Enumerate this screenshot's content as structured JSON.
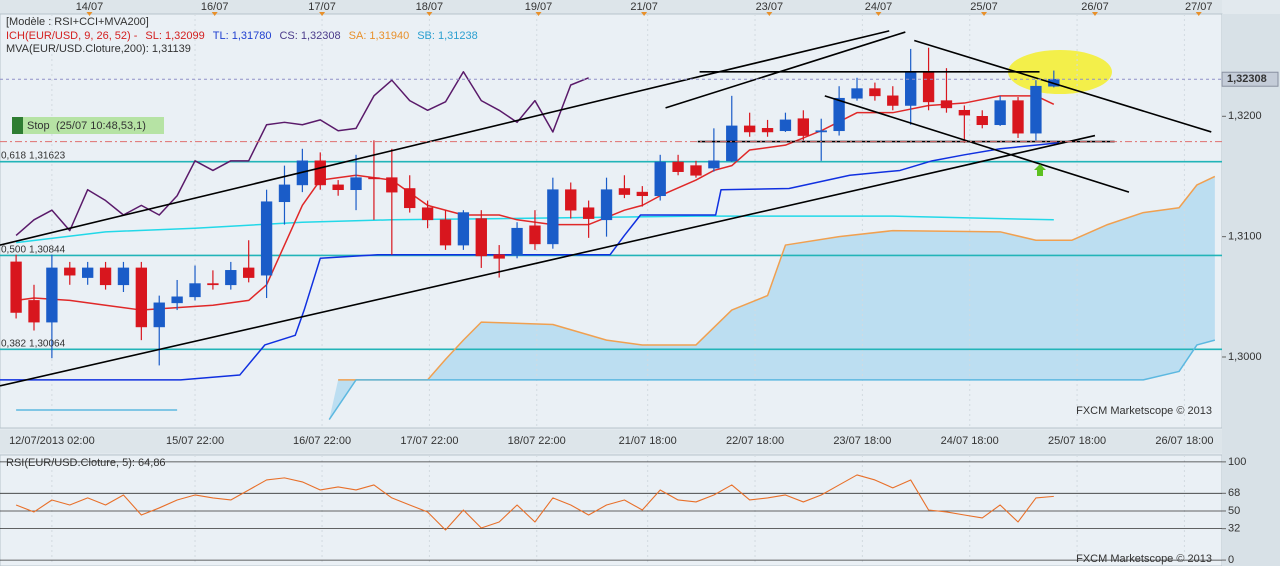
{
  "chart_data": [
    {
      "type": "candlestick",
      "legend": {
        "model": "[Modèle : RSI+CCI+MVA200]",
        "ichimoku": "ICH(EUR/USD, 9, 26, 52) -",
        "ichimoku_color": "#d42020",
        "items": [
          {
            "label": "SL: 1,32099",
            "color": "#d42020"
          },
          {
            "label": "TL: 1,31780",
            "color": "#1f3fd0"
          },
          {
            "label": "CS: 1,32308",
            "color": "#4a3a8a"
          },
          {
            "label": "SA: 1,31940",
            "color": "#e8902a"
          },
          {
            "label": "SB: 1,31238",
            "color": "#2a9fd0"
          }
        ],
        "ma": "MVA(EUR/USD.Cloture,200): 1,31139",
        "ma_color": "#22d0e0"
      },
      "watermark": "FXCM Marketscope © 2013",
      "grid": true,
      "xlim": [
        -0.9,
        67.4
      ],
      "xticks_top": [
        {
          "value": 4.1,
          "label": "14/07"
        },
        {
          "value": 11.1,
          "label": "16/07"
        },
        {
          "value": 17.1,
          "label": "17/07"
        },
        {
          "value": 23.1,
          "label": "18/07"
        },
        {
          "value": 29.2,
          "label": "19/07"
        },
        {
          "value": 35.1,
          "label": "21/07"
        },
        {
          "value": 42.1,
          "label": "23/07"
        },
        {
          "value": 48.2,
          "label": "24/07"
        },
        {
          "value": 54.1,
          "label": "25/07"
        },
        {
          "value": 60.3,
          "label": "26/07"
        },
        {
          "value": 66.1,
          "label": "27/07"
        }
      ],
      "xticks": [
        {
          "value": 2.0,
          "label": "12/07/2013 02:00"
        },
        {
          "value": 10,
          "label": "15/07 22:00"
        },
        {
          "value": 17.1,
          "label": "16/07 22:00"
        },
        {
          "value": 23.1,
          "label": "17/07 22:00"
        },
        {
          "value": 29.1,
          "label": "18/07 22:00"
        },
        {
          "value": 35.3,
          "label": "21/07 18:00"
        },
        {
          "value": 41.3,
          "label": "22/07 18:00"
        },
        {
          "value": 47.3,
          "label": "23/07 18:00"
        },
        {
          "value": 53.3,
          "label": "24/07 18:00"
        },
        {
          "value": 59.3,
          "label": "25/07 18:00"
        },
        {
          "value": 65.3,
          "label": "26/07 18:00"
        }
      ],
      "ylim": [
        1.2941,
        1.3285
      ],
      "yticks": [
        {
          "value": 1.32,
          "label": "1,3200"
        },
        {
          "value": 1.31,
          "label": "1,3100"
        },
        {
          "value": 1.3,
          "label": "1,3000"
        }
      ],
      "up_color": "#1a5cc8",
      "down_color": "#d8161e",
      "open": [
        1.3079,
        1.3047,
        1.3029,
        1.3074,
        1.3066,
        1.3074,
        1.306,
        1.3074,
        1.3025,
        1.3045,
        1.305,
        1.3061,
        1.306,
        1.3074,
        1.3068,
        1.3129,
        1.3143,
        1.3163,
        1.3143,
        1.3139,
        1.3149,
        1.3149,
        1.314,
        1.3124,
        1.3114,
        1.3093,
        1.3115,
        1.3085,
        1.3085,
        1.3109,
        1.3094,
        1.3139,
        1.3124,
        1.3114,
        1.314,
        1.3137,
        1.3134,
        1.3162,
        1.3159,
        1.3157,
        1.3163,
        1.3192,
        1.319,
        1.3188,
        1.3198,
        1.3187,
        1.3188,
        1.3215,
        1.3223,
        1.3217,
        1.3209,
        1.3237,
        1.3213,
        1.3205,
        1.32,
        1.3193,
        1.3213,
        1.3186,
        1.3225
      ],
      "high": [
        1.3085,
        1.306,
        1.3085,
        1.3079,
        1.3079,
        1.3079,
        1.3079,
        1.3079,
        1.3051,
        1.3064,
        1.3076,
        1.3072,
        1.3079,
        1.3097,
        1.3139,
        1.3159,
        1.3173,
        1.317,
        1.3147,
        1.3168,
        1.318,
        1.3173,
        1.3151,
        1.313,
        1.3122,
        1.3122,
        1.3122,
        1.3093,
        1.3112,
        1.3122,
        1.3149,
        1.3145,
        1.313,
        1.3149,
        1.3151,
        1.3142,
        1.3168,
        1.3168,
        1.3163,
        1.319,
        1.3217,
        1.3203,
        1.3197,
        1.3203,
        1.3205,
        1.3198,
        1.3225,
        1.3232,
        1.3228,
        1.3225,
        1.3256,
        1.3257,
        1.324,
        1.3209,
        1.3205,
        1.3217,
        1.3216,
        1.323,
        1.3238
      ],
      "low": [
        1.3032,
        1.3022,
        1.2999,
        1.306,
        1.306,
        1.3056,
        1.3054,
        1.3014,
        1.2993,
        1.3039,
        1.3047,
        1.3056,
        1.3056,
        1.3062,
        1.3049,
        1.311,
        1.3137,
        1.3139,
        1.3134,
        1.3122,
        1.3114,
        1.3085,
        1.312,
        1.3107,
        1.3089,
        1.3089,
        1.3074,
        1.3066,
        1.3082,
        1.3089,
        1.309,
        1.3115,
        1.3099,
        1.31,
        1.3132,
        1.3125,
        1.313,
        1.3151,
        1.3149,
        1.3154,
        1.3162,
        1.3183,
        1.3183,
        1.3187,
        1.318,
        1.3163,
        1.3184,
        1.3213,
        1.3213,
        1.3205,
        1.3193,
        1.3205,
        1.3203,
        1.3178,
        1.319,
        1.3192,
        1.3182,
        1.318,
        1.3224
      ],
      "close": [
        1.3037,
        1.3029,
        1.3074,
        1.3068,
        1.3074,
        1.306,
        1.3074,
        1.3025,
        1.3045,
        1.305,
        1.3061,
        1.306,
        1.3072,
        1.3066,
        1.3129,
        1.3143,
        1.3163,
        1.3143,
        1.3139,
        1.3149,
        1.3148,
        1.3137,
        1.3124,
        1.3114,
        1.3093,
        1.312,
        1.3084,
        1.3082,
        1.3107,
        1.3094,
        1.3139,
        1.3122,
        1.3115,
        1.3139,
        1.3135,
        1.3134,
        1.3162,
        1.3154,
        1.3151,
        1.3163,
        1.3192,
        1.3187,
        1.3187,
        1.3197,
        1.3184,
        1.3188,
        1.3215,
        1.3223,
        1.3217,
        1.3209,
        1.3237,
        1.3212,
        1.3207,
        1.3201,
        1.3193,
        1.3213,
        1.3186,
        1.3225,
        1.32308
      ],
      "cloud_color": "#b4daf0",
      "series": [
        {
          "color": "#22d8e8",
          "x": [
            0,
            5,
            10,
            16,
            21,
            27,
            38,
            49,
            58
          ],
          "values": [
            1.3095,
            1.3104,
            1.3107,
            1.3112,
            1.3114,
            1.3115,
            1.3117,
            1.3117,
            1.3114
          ]
        },
        {
          "color": "#f0a050",
          "x": [
            18,
            23,
            24,
            25,
            26,
            30,
            33,
            35,
            38,
            40,
            42,
            43,
            46,
            49,
            55,
            57,
            59,
            61,
            63,
            65,
            66,
            67
          ],
          "values": [
            1.2981,
            1.2981,
            1.2998,
            1.3014,
            1.3029,
            1.3027,
            1.3014,
            1.301,
            1.301,
            1.3039,
            1.3051,
            1.3093,
            1.31,
            1.3105,
            1.3104,
            1.3097,
            1.3097,
            1.311,
            1.312,
            1.3124,
            1.3143,
            1.315
          ]
        },
        {
          "color": "#5cb8e0",
          "x": [
            0,
            9,
            13,
            17.5,
            19,
            63,
            65,
            66,
            67
          ],
          "values": [
            1.2956,
            1.2956,
            null,
            1.2948,
            1.2981,
            1.2981,
            1.2988,
            1.301,
            1.3014
          ]
        },
        {
          "color": "#1030e0",
          "x": [
            -0.9,
            9.2,
            12.5,
            13.9,
            15.6,
            16.1,
            17,
            20.2,
            33.2,
            34,
            34.9,
            39.1,
            39.4,
            43.2,
            46.6,
            49.4,
            51.2,
            53,
            55,
            58.3
          ],
          "values": [
            1.2981,
            1.2981,
            1.2985,
            1.301,
            1.3018,
            1.3039,
            1.3082,
            1.3085,
            1.3085,
            1.3101,
            1.3118,
            1.3118,
            1.3139,
            1.314,
            1.3151,
            1.3155,
            1.3163,
            1.3168,
            1.3173,
            1.3178
          ]
        },
        {
          "color": "#e02828",
          "x": [
            0,
            1,
            3,
            5,
            7,
            9,
            11,
            13,
            14,
            15,
            16,
            17,
            19,
            21,
            23,
            25,
            27,
            28,
            30,
            32,
            34,
            35,
            36,
            38,
            39,
            40,
            41,
            43,
            45,
            47,
            49,
            51,
            53,
            55,
            57,
            58
          ],
          "values": [
            1.3047,
            1.3049,
            1.3047,
            1.3043,
            1.3039,
            1.3041,
            1.3043,
            1.3047,
            1.306,
            1.3093,
            1.3126,
            1.3147,
            1.3151,
            1.3147,
            1.3126,
            1.3118,
            1.3118,
            1.3114,
            1.311,
            1.311,
            1.3122,
            1.3126,
            1.3134,
            1.3147,
            1.3155,
            1.3159,
            1.3172,
            1.3176,
            1.3188,
            1.3203,
            1.3203,
            1.3209,
            1.3211,
            1.3217,
            1.3217,
            1.321
          ]
        },
        {
          "color": "#5a1a6a",
          "x": [
            0,
            1,
            2,
            3,
            4,
            5,
            6,
            7,
            8,
            9,
            10,
            11,
            12,
            13,
            14,
            15,
            16,
            17,
            18,
            19,
            20,
            21,
            22,
            23,
            24,
            25,
            26,
            27,
            28,
            29,
            30,
            31,
            32
          ],
          "values": [
            1.3101,
            1.3114,
            1.3122,
            1.3105,
            1.3139,
            1.313,
            1.3118,
            1.3126,
            1.3118,
            1.3134,
            1.3163,
            1.3155,
            1.3163,
            1.3163,
            1.3193,
            1.3195,
            1.3193,
            1.3197,
            1.3188,
            1.319,
            1.3217,
            1.323,
            1.3213,
            1.3205,
            1.3212,
            1.3237,
            1.3213,
            1.3205,
            1.3195,
            1.3213,
            1.3187,
            1.3226,
            1.3232
          ]
        }
      ],
      "fib_color": "#22b4b8",
      "fib_levels": [
        {
          "ratio": "0,618",
          "value": 1.31623,
          "label": "1,31623"
        },
        {
          "ratio": "0,500",
          "value": 1.30844,
          "label": "1,30844"
        },
        {
          "ratio": "0,382",
          "value": 1.30064,
          "label": "1,30064"
        }
      ],
      "trendline_color": "#000000",
      "trendlines": [
        {
          "x": [
            -0.9,
            48.8
          ],
          "values": [
            1.3093,
            1.3271
          ]
        },
        {
          "x": [
            -0.9,
            60.3
          ],
          "values": [
            1.2976,
            1.3184
          ]
        },
        {
          "x": [
            36.3,
            49.7
          ],
          "values": [
            1.3207,
            1.327
          ]
        },
        {
          "x": [
            38.2,
            57.2
          ],
          "values": [
            1.3237,
            1.3237
          ]
        },
        {
          "x": [
            38.1,
            61.4
          ],
          "values": [
            1.3179,
            1.3179
          ]
        },
        {
          "x": [
            50.2,
            66.8
          ],
          "values": [
            1.3263,
            1.3187
          ]
        },
        {
          "x": [
            45.2,
            62.2
          ],
          "values": [
            1.3217,
            1.3137
          ]
        }
      ],
      "last_price": {
        "value": 1.32308,
        "label": "1,32308"
      },
      "stop": {
        "label": "Stop",
        "text": "(25/07 10:48,53,1)",
        "value": 1.3179
      }
    },
    {
      "type": "line",
      "title": "RSI(EUR/USD.Cloture, 5): 64,86",
      "watermark": "FXCM Marketscope © 2013",
      "color": "#e8702a",
      "ylim": [
        -5,
        107
      ],
      "yticks": [
        100,
        68,
        50,
        32,
        0
      ],
      "values": [
        56.1,
        49.0,
        61.2,
        56.1,
        63.3,
        56.1,
        66.3,
        45.9,
        53.1,
        61.2,
        66.3,
        63.3,
        61.2,
        71.4,
        81.6,
        83.7,
        79.6,
        71.4,
        74.5,
        71.4,
        76.5,
        63.3,
        56.1,
        49.0,
        30.6,
        51.0,
        32.7,
        38.8,
        56.1,
        38.8,
        63.3,
        56.1,
        45.9,
        56.1,
        61.2,
        51.0,
        71.4,
        61.2,
        59.2,
        66.3,
        76.5,
        61.2,
        63.3,
        66.3,
        59.2,
        66.3,
        76.5,
        86.7,
        81.6,
        73.5,
        81.6,
        51.0,
        49.0,
        45.9,
        42.9,
        56.1,
        38.8,
        63.3,
        64.86
      ]
    }
  ]
}
